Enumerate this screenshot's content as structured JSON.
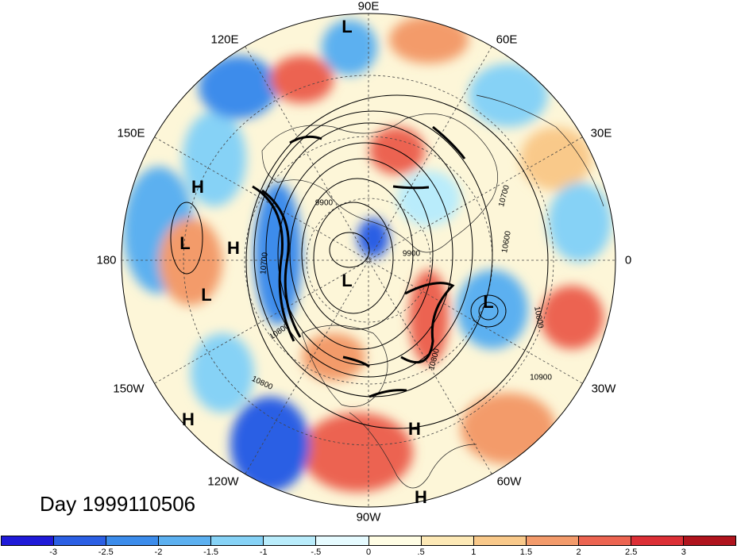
{
  "title": "Day 1999110506",
  "longitude_labels": {
    "lon_90e": "90E",
    "lon_60e": "60E",
    "lon_30e": "30E",
    "lon_0": "0",
    "lon_30w": "30W",
    "lon_60w": "60W",
    "lon_90w": "90W",
    "lon_120w": "120W",
    "lon_150w": "150W",
    "lon_180": "180",
    "lon_150e": "150E",
    "lon_120e": "120E"
  },
  "pressure_centers": {
    "c1": "L",
    "c2": "H",
    "c3": "L",
    "c4": "H",
    "c5": "L",
    "c6": "L",
    "c7": "L",
    "c8": "H",
    "c9": "H",
    "c10": "H"
  },
  "contour_labels": {
    "k1": "9900",
    "k2": "9900",
    "k3": "10700",
    "k4": "10600",
    "k5": "10800",
    "k6": "10800",
    "k7": "10900",
    "k8": "10800",
    "k9": "10700",
    "k10": "10800"
  },
  "colorbar": {
    "colors": [
      "#1f1ad8",
      "#2b5fe4",
      "#3c8ceb",
      "#5cb0f0",
      "#86d2f6",
      "#b9ecfb",
      "#e6fbff",
      "#fffde4",
      "#fde9b6",
      "#f9c98a",
      "#f39b6b",
      "#ec6451",
      "#dc2f36",
      "#b0141d"
    ],
    "tick_labels": [
      "-3",
      "-2.5",
      "-2",
      "-1.5",
      "-1",
      "-.5",
      "0",
      ".5",
      "1",
      "1.5",
      "2",
      "2.5",
      "3"
    ]
  }
}
